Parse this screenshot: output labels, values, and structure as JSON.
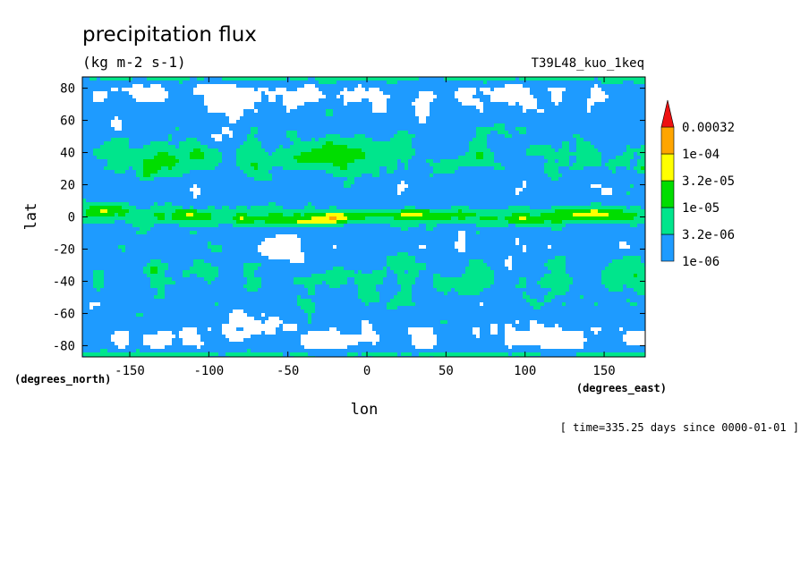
{
  "chart_data": {
    "type": "heatmap",
    "title": "precipitation flux",
    "units": "(kg m-2 s-1)",
    "dataset": "T39L48_kuo_1keq",
    "xlabel": "lon",
    "ylabel": "lat",
    "x_units": "(degrees_east)",
    "y_units": "(degrees_north)",
    "xlim": [
      -180,
      176
    ],
    "ylim": [
      -87,
      87
    ],
    "x_ticks": [
      -150,
      -100,
      -50,
      0,
      50,
      100,
      150
    ],
    "y_ticks": [
      80,
      60,
      40,
      20,
      0,
      -20,
      -40,
      -60,
      -80
    ],
    "time_label": "[ time=335.25 days since 0000-01-01 ]",
    "levels": [
      {
        "label": "1e-06",
        "color": "#1e9bff"
      },
      {
        "label": "3.2e-06",
        "color": "#00e58c"
      },
      {
        "label": "1e-05",
        "color": "#00dd00"
      },
      {
        "label": "3.2e-05",
        "color": "#ffff00"
      },
      {
        "label": "1e-04",
        "color": "#ffa500"
      },
      {
        "label": "0.00032",
        "color": "#ee1111"
      }
    ],
    "below_color": "#ffffff",
    "legend_position": "right"
  }
}
